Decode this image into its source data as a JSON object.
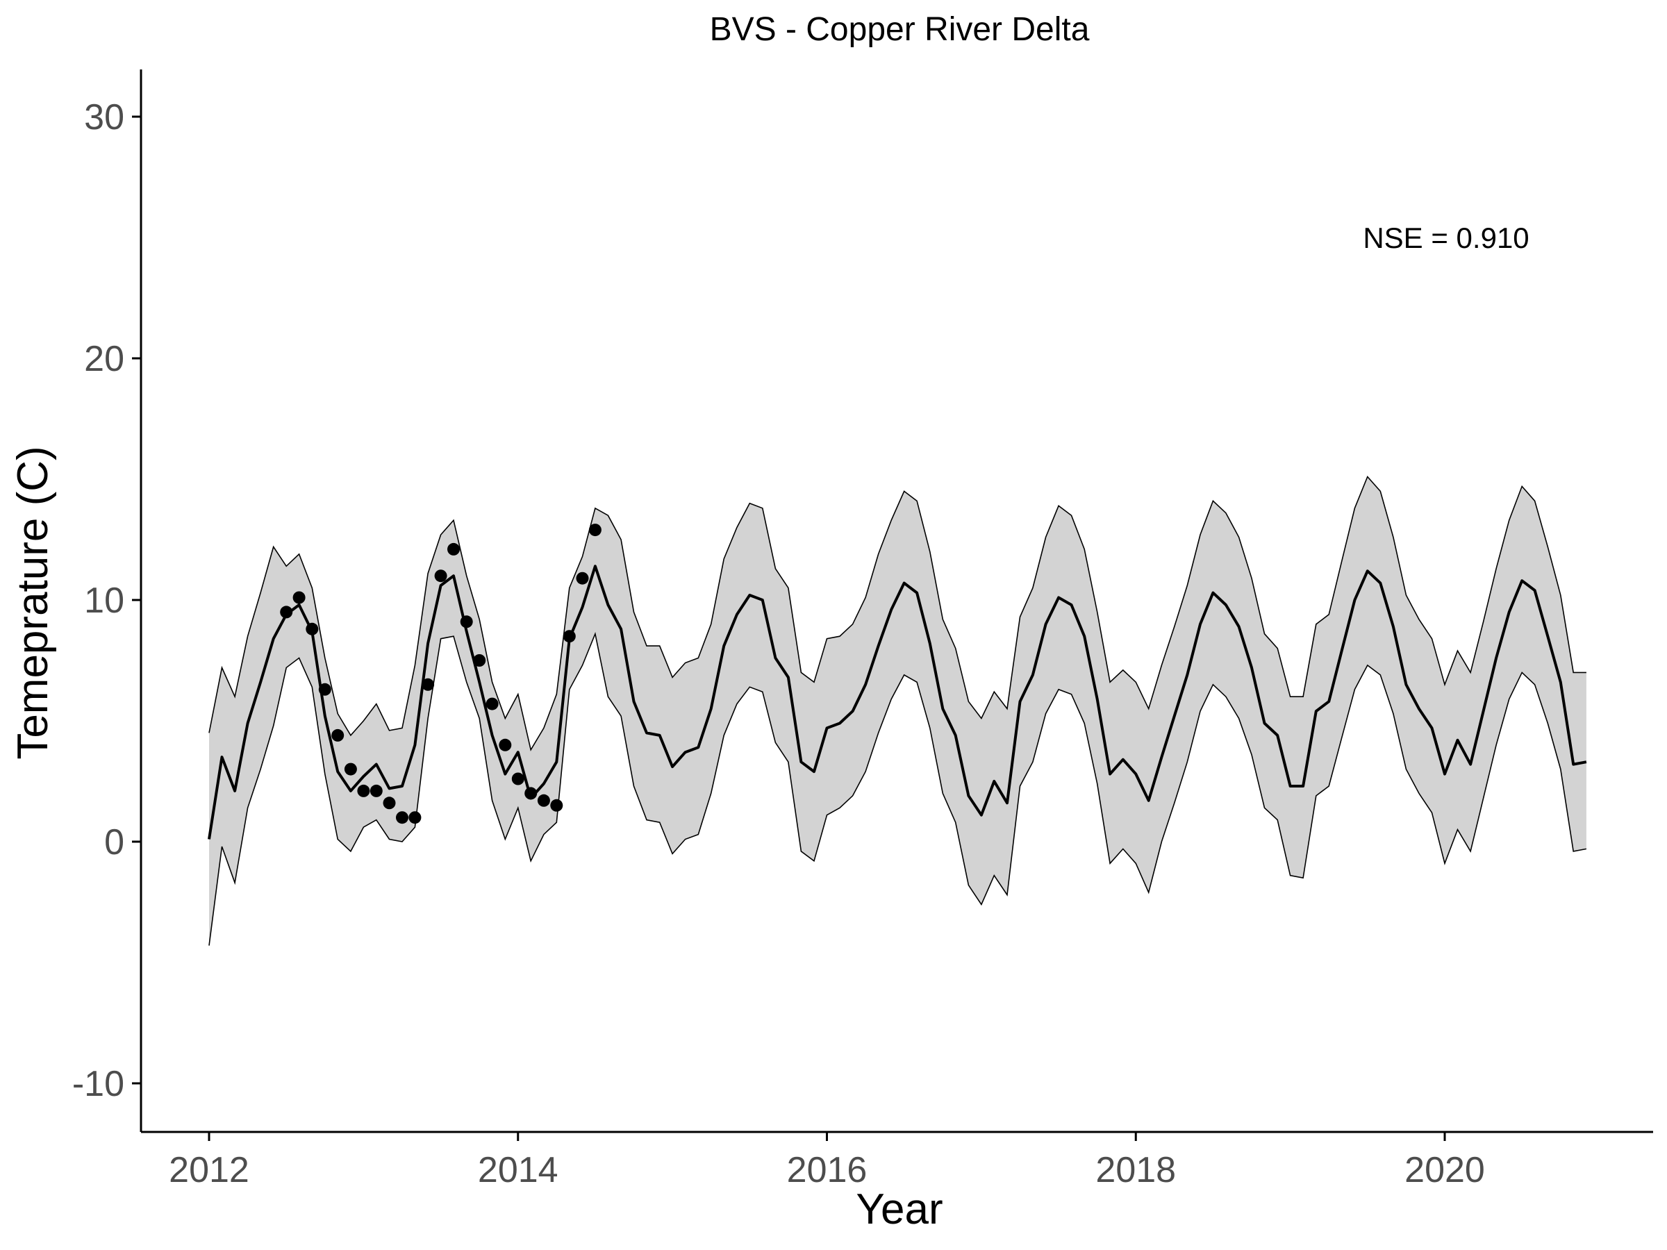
{
  "chart_data": {
    "type": "line",
    "title": "BVS - Copper River Delta",
    "xlabel": "Year",
    "ylabel": "Temeprature (C)",
    "xlim": [
      2011.55,
      2021.3
    ],
    "ylim": [
      -12,
      32
    ],
    "xticks": [
      2012,
      2014,
      2016,
      2018,
      2020
    ],
    "yticks": [
      -10,
      0,
      10,
      20,
      30
    ],
    "grid": false,
    "legend": "none",
    "annotation": "NSE = 0.910",
    "colors": {
      "line": "#000000",
      "band_fill": "#d3d3d3",
      "band_edge": "#000000",
      "points": "#000000",
      "tick_labels": "#4d4d4d"
    },
    "series": [
      {
        "kind": "line",
        "x": [
          2012.0,
          2012.083,
          2012.167,
          2012.25,
          2012.333,
          2012.417,
          2012.5,
          2012.583,
          2012.667,
          2012.75,
          2012.833,
          2012.917,
          2013.0,
          2013.083,
          2013.167,
          2013.25,
          2013.333,
          2013.417,
          2013.5,
          2013.583,
          2013.667,
          2013.75,
          2013.833,
          2013.917,
          2014.0,
          2014.083,
          2014.167,
          2014.25,
          2014.333,
          2014.417,
          2014.5,
          2014.583,
          2014.667,
          2014.75,
          2014.833,
          2014.917,
          2015.0,
          2015.083,
          2015.167,
          2015.25,
          2015.333,
          2015.417,
          2015.5,
          2015.583,
          2015.667,
          2015.75,
          2015.833,
          2015.917,
          2016.0,
          2016.083,
          2016.167,
          2016.25,
          2016.333,
          2016.417,
          2016.5,
          2016.583,
          2016.667,
          2016.75,
          2016.833,
          2016.917,
          2017.0,
          2017.083,
          2017.167,
          2017.25,
          2017.333,
          2017.417,
          2017.5,
          2017.583,
          2017.667,
          2017.75,
          2017.833,
          2017.917,
          2018.0,
          2018.083,
          2018.167,
          2018.25,
          2018.333,
          2018.417,
          2018.5,
          2018.583,
          2018.667,
          2018.75,
          2018.833,
          2018.917,
          2019.0,
          2019.083,
          2019.167,
          2019.25,
          2019.333,
          2019.417,
          2019.5,
          2019.583,
          2019.667,
          2019.75,
          2019.833,
          2019.917,
          2020.0,
          2020.083,
          2020.167,
          2020.25,
          2020.333,
          2020.417,
          2020.5,
          2020.583,
          2020.667,
          2020.75,
          2020.833,
          2020.917
        ],
        "y": [
          0.1,
          3.5,
          2.1,
          4.9,
          6.6,
          8.4,
          9.4,
          9.8,
          8.7,
          5.2,
          2.9,
          2.1,
          2.7,
          3.2,
          2.2,
          2.3,
          4.0,
          8.2,
          10.6,
          11.0,
          8.7,
          6.6,
          4.4,
          2.8,
          3.7,
          1.8,
          2.4,
          3.3,
          8.4,
          9.7,
          11.4,
          9.8,
          8.8,
          5.8,
          4.5,
          4.4,
          3.1,
          3.7,
          3.9,
          5.5,
          8.1,
          9.4,
          10.2,
          10.0,
          7.6,
          6.8,
          3.3,
          2.9,
          4.7,
          4.9,
          5.4,
          6.5,
          8.1,
          9.6,
          10.7,
          10.3,
          8.2,
          5.5,
          4.4,
          1.9,
          1.1,
          2.5,
          1.6,
          5.8,
          6.9,
          9.0,
          10.1,
          9.8,
          8.5,
          5.9,
          2.8,
          3.4,
          2.8,
          1.7,
          3.5,
          5.2,
          6.9,
          9.0,
          10.3,
          9.8,
          8.9,
          7.2,
          4.9,
          4.4,
          2.3,
          2.3,
          5.4,
          5.8,
          7.9,
          10.0,
          11.2,
          10.7,
          8.9,
          6.5,
          5.5,
          4.7,
          2.8,
          4.2,
          3.2,
          5.4,
          7.6,
          9.5,
          10.8,
          10.4,
          8.5,
          6.6,
          3.2,
          3.3
        ]
      },
      {
        "kind": "band",
        "x": [
          2012.0,
          2012.083,
          2012.167,
          2012.25,
          2012.333,
          2012.417,
          2012.5,
          2012.583,
          2012.667,
          2012.75,
          2012.833,
          2012.917,
          2013.0,
          2013.083,
          2013.167,
          2013.25,
          2013.333,
          2013.417,
          2013.5,
          2013.583,
          2013.667,
          2013.75,
          2013.833,
          2013.917,
          2014.0,
          2014.083,
          2014.167,
          2014.25,
          2014.333,
          2014.417,
          2014.5,
          2014.583,
          2014.667,
          2014.75,
          2014.833,
          2014.917,
          2015.0,
          2015.083,
          2015.167,
          2015.25,
          2015.333,
          2015.417,
          2015.5,
          2015.583,
          2015.667,
          2015.75,
          2015.833,
          2015.917,
          2016.0,
          2016.083,
          2016.167,
          2016.25,
          2016.333,
          2016.417,
          2016.5,
          2016.583,
          2016.667,
          2016.75,
          2016.833,
          2016.917,
          2017.0,
          2017.083,
          2017.167,
          2017.25,
          2017.333,
          2017.417,
          2017.5,
          2017.583,
          2017.667,
          2017.75,
          2017.833,
          2017.917,
          2018.0,
          2018.083,
          2018.167,
          2018.25,
          2018.333,
          2018.417,
          2018.5,
          2018.583,
          2018.667,
          2018.75,
          2018.833,
          2018.917,
          2019.0,
          2019.083,
          2019.167,
          2019.25,
          2019.333,
          2019.417,
          2019.5,
          2019.583,
          2019.667,
          2019.75,
          2019.833,
          2019.917,
          2020.0,
          2020.083,
          2020.167,
          2020.25,
          2020.333,
          2020.417,
          2020.5,
          2020.583,
          2020.667,
          2020.75,
          2020.833,
          2020.917
        ],
        "upper": [
          4.5,
          7.2,
          6.0,
          8.5,
          10.3,
          12.2,
          11.4,
          11.9,
          10.5,
          7.6,
          5.3,
          4.4,
          5.0,
          5.7,
          4.6,
          4.7,
          7.3,
          11.1,
          12.7,
          13.3,
          11.0,
          9.2,
          6.6,
          5.1,
          6.1,
          3.8,
          4.7,
          6.1,
          10.5,
          11.8,
          13.8,
          13.5,
          12.5,
          9.5,
          8.1,
          8.1,
          6.8,
          7.4,
          7.6,
          9.0,
          11.7,
          13.0,
          14.0,
          13.8,
          11.3,
          10.5,
          7.0,
          6.6,
          8.4,
          8.5,
          9.0,
          10.1,
          11.9,
          13.3,
          14.5,
          14.1,
          12.0,
          9.2,
          8.0,
          5.8,
          5.1,
          6.2,
          5.5,
          9.3,
          10.5,
          12.6,
          13.9,
          13.5,
          12.1,
          9.5,
          6.6,
          7.1,
          6.6,
          5.5,
          7.3,
          8.9,
          10.6,
          12.7,
          14.1,
          13.6,
          12.6,
          10.9,
          8.6,
          8.0,
          6.0,
          6.0,
          9.0,
          9.4,
          11.6,
          13.8,
          15.1,
          14.5,
          12.6,
          10.2,
          9.2,
          8.4,
          6.5,
          7.9,
          7.0,
          9.1,
          11.3,
          13.3,
          14.7,
          14.1,
          12.2,
          10.2,
          7.0,
          7.0
        ],
        "lower": [
          -4.3,
          -0.2,
          -1.7,
          1.4,
          3.0,
          4.8,
          7.2,
          7.6,
          6.4,
          2.8,
          0.1,
          -0.4,
          0.6,
          0.9,
          0.1,
          0.0,
          0.6,
          5.1,
          8.4,
          8.5,
          6.6,
          5.1,
          1.7,
          0.1,
          1.4,
          -0.8,
          0.3,
          0.8,
          6.3,
          7.3,
          8.6,
          6.0,
          5.2,
          2.3,
          0.9,
          0.8,
          -0.5,
          0.1,
          0.3,
          2.0,
          4.4,
          5.7,
          6.4,
          6.2,
          4.1,
          3.3,
          -0.4,
          -0.8,
          1.1,
          1.4,
          1.9,
          2.9,
          4.5,
          5.9,
          6.9,
          6.6,
          4.7,
          2.0,
          0.8,
          -1.8,
          -2.6,
          -1.4,
          -2.2,
          2.3,
          3.3,
          5.3,
          6.3,
          6.1,
          4.9,
          2.4,
          -0.9,
          -0.3,
          -0.9,
          -2.1,
          0.0,
          1.6,
          3.3,
          5.4,
          6.5,
          6.0,
          5.1,
          3.6,
          1.4,
          0.9,
          -1.4,
          -1.5,
          1.9,
          2.3,
          4.3,
          6.3,
          7.3,
          6.9,
          5.3,
          3.0,
          2.0,
          1.2,
          -0.9,
          0.5,
          -0.4,
          1.8,
          4.0,
          5.9,
          7.0,
          6.5,
          4.9,
          3.0,
          -0.4,
          -0.3
        ]
      },
      {
        "kind": "points",
        "x": [
          2012.5,
          2012.583,
          2012.667,
          2012.75,
          2012.833,
          2012.917,
          2013.0,
          2013.083,
          2013.167,
          2013.25,
          2013.333,
          2013.417,
          2013.5,
          2013.583,
          2013.667,
          2013.75,
          2013.833,
          2013.917,
          2014.0,
          2014.083,
          2014.167,
          2014.25,
          2014.333,
          2014.417,
          2014.5
        ],
        "y": [
          9.5,
          10.1,
          8.8,
          6.3,
          4.4,
          3.0,
          2.1,
          2.1,
          1.6,
          1.0,
          1.0,
          6.5,
          11.0,
          12.1,
          9.1,
          7.5,
          5.7,
          4.0,
          2.6,
          2.0,
          1.7,
          1.5,
          8.5,
          10.9,
          12.9
        ]
      }
    ]
  }
}
